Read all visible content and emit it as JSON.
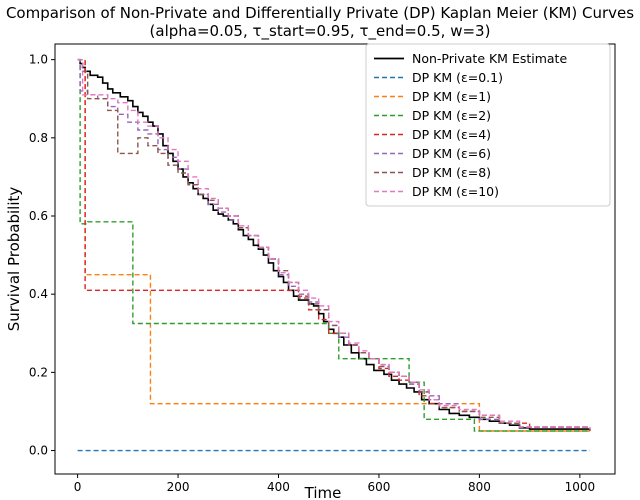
{
  "chart_data": {
    "type": "line",
    "title": "Comparison of Non-Private and Differentially Private (DP) Kaplan Meier (KM) Curves",
    "subtitle": "(alpha=0.05, τ_start=0.95, τ_end=0.5, w=3)",
    "xlabel": "Time",
    "ylabel": "Survival Probability",
    "xlim": [
      -45,
      1070
    ],
    "ylim": [
      -0.06,
      1.04
    ],
    "xticks": [
      0,
      200,
      400,
      600,
      800,
      1000
    ],
    "yticks": [
      0.0,
      0.2,
      0.4,
      0.6,
      0.8,
      1.0
    ],
    "xtick_labels": [
      "0",
      "200",
      "400",
      "600",
      "800",
      "1000"
    ],
    "ytick_labels": [
      "0.0",
      "0.2",
      "0.4",
      "0.6",
      "0.8",
      "1.0"
    ],
    "grid": false,
    "legend_position": "top-right",
    "step": true,
    "series": [
      {
        "name": "Non-Private KM Estimate",
        "color": "#000000",
        "dash": "solid",
        "points": [
          [
            0,
            1.0
          ],
          [
            5,
            0.99
          ],
          [
            10,
            0.98
          ],
          [
            15,
            0.97
          ],
          [
            25,
            0.96
          ],
          [
            40,
            0.955
          ],
          [
            50,
            0.94
          ],
          [
            60,
            0.925
          ],
          [
            70,
            0.915
          ],
          [
            85,
            0.905
          ],
          [
            100,
            0.895
          ],
          [
            110,
            0.88
          ],
          [
            120,
            0.865
          ],
          [
            130,
            0.855
          ],
          [
            140,
            0.84
          ],
          [
            150,
            0.83
          ],
          [
            160,
            0.81
          ],
          [
            170,
            0.78
          ],
          [
            180,
            0.76
          ],
          [
            190,
            0.74
          ],
          [
            200,
            0.72
          ],
          [
            210,
            0.7
          ],
          [
            220,
            0.685
          ],
          [
            230,
            0.67
          ],
          [
            240,
            0.655
          ],
          [
            250,
            0.645
          ],
          [
            260,
            0.63
          ],
          [
            270,
            0.615
          ],
          [
            280,
            0.605
          ],
          [
            290,
            0.6
          ],
          [
            300,
            0.59
          ],
          [
            310,
            0.58
          ],
          [
            320,
            0.565
          ],
          [
            330,
            0.55
          ],
          [
            340,
            0.54
          ],
          [
            350,
            0.525
          ],
          [
            360,
            0.515
          ],
          [
            370,
            0.5
          ],
          [
            380,
            0.48
          ],
          [
            390,
            0.46
          ],
          [
            400,
            0.445
          ],
          [
            410,
            0.43
          ],
          [
            420,
            0.41
          ],
          [
            430,
            0.395
          ],
          [
            440,
            0.385
          ],
          [
            460,
            0.375
          ],
          [
            470,
            0.37
          ],
          [
            480,
            0.35
          ],
          [
            490,
            0.33
          ],
          [
            500,
            0.31
          ],
          [
            510,
            0.3
          ],
          [
            520,
            0.29
          ],
          [
            530,
            0.27
          ],
          [
            545,
            0.25
          ],
          [
            560,
            0.235
          ],
          [
            575,
            0.22
          ],
          [
            590,
            0.205
          ],
          [
            610,
            0.195
          ],
          [
            625,
            0.18
          ],
          [
            640,
            0.17
          ],
          [
            655,
            0.16
          ],
          [
            670,
            0.15
          ],
          [
            685,
            0.13
          ],
          [
            700,
            0.12
          ],
          [
            720,
            0.105
          ],
          [
            740,
            0.095
          ],
          [
            760,
            0.09
          ],
          [
            780,
            0.085
          ],
          [
            800,
            0.08
          ],
          [
            820,
            0.075
          ],
          [
            840,
            0.07
          ],
          [
            860,
            0.065
          ],
          [
            880,
            0.058
          ],
          [
            900,
            0.055
          ],
          [
            1020,
            0.055
          ]
        ]
      },
      {
        "name": "DP KM (ε=0.1)",
        "color": "#1f77b4",
        "dash": "dashed",
        "points": [
          [
            0,
            0.0
          ],
          [
            1020,
            0.0
          ]
        ]
      },
      {
        "name": "DP KM (ε=1)",
        "color": "#ff7f0e",
        "dash": "dashed",
        "points": [
          [
            0,
            1.0
          ],
          [
            15,
            0.45
          ],
          [
            145,
            0.12
          ],
          [
            800,
            0.05
          ],
          [
            1020,
            0.05
          ]
        ]
      },
      {
        "name": "DP KM (ε=2)",
        "color": "#2ca02c",
        "dash": "dashed",
        "points": [
          [
            0,
            1.0
          ],
          [
            5,
            0.58
          ],
          [
            20,
            0.585
          ],
          [
            110,
            0.325
          ],
          [
            500,
            0.3
          ],
          [
            510,
            0.3
          ],
          [
            520,
            0.235
          ],
          [
            660,
            0.175
          ],
          [
            690,
            0.08
          ],
          [
            760,
            0.08
          ],
          [
            790,
            0.05
          ],
          [
            1020,
            0.05
          ]
        ]
      },
      {
        "name": "DP KM (ε=4)",
        "color": "#d62728",
        "dash": "dashed",
        "points": [
          [
            0,
            1.0
          ],
          [
            15,
            0.41
          ],
          [
            440,
            0.395
          ],
          [
            460,
            0.36
          ],
          [
            480,
            0.335
          ],
          [
            500,
            0.3
          ],
          [
            540,
            0.27
          ],
          [
            560,
            0.25
          ],
          [
            580,
            0.235
          ],
          [
            600,
            0.21
          ],
          [
            620,
            0.19
          ],
          [
            640,
            0.18
          ],
          [
            660,
            0.17
          ],
          [
            680,
            0.14
          ],
          [
            700,
            0.12
          ],
          [
            720,
            0.11
          ],
          [
            760,
            0.1
          ],
          [
            800,
            0.09
          ],
          [
            840,
            0.07
          ],
          [
            900,
            0.06
          ],
          [
            1020,
            0.05
          ]
        ]
      },
      {
        "name": "DP KM (ε=6)",
        "color": "#9467bd",
        "dash": "dashed",
        "points": [
          [
            0,
            1.0
          ],
          [
            5,
            0.92
          ],
          [
            20,
            0.91
          ],
          [
            40,
            0.9
          ],
          [
            60,
            0.88
          ],
          [
            80,
            0.86
          ],
          [
            100,
            0.84
          ],
          [
            120,
            0.82
          ],
          [
            140,
            0.81
          ],
          [
            160,
            0.77
          ],
          [
            180,
            0.75
          ],
          [
            200,
            0.72
          ],
          [
            220,
            0.68
          ],
          [
            240,
            0.655
          ],
          [
            260,
            0.63
          ],
          [
            280,
            0.61
          ],
          [
            300,
            0.59
          ],
          [
            320,
            0.57
          ],
          [
            340,
            0.55
          ],
          [
            360,
            0.52
          ],
          [
            380,
            0.49
          ],
          [
            400,
            0.45
          ],
          [
            420,
            0.42
          ],
          [
            440,
            0.4
          ],
          [
            460,
            0.38
          ],
          [
            480,
            0.36
          ],
          [
            500,
            0.32
          ],
          [
            520,
            0.29
          ],
          [
            540,
            0.27
          ],
          [
            560,
            0.25
          ],
          [
            580,
            0.235
          ],
          [
            600,
            0.22
          ],
          [
            620,
            0.2
          ],
          [
            640,
            0.19
          ],
          [
            660,
            0.17
          ],
          [
            680,
            0.15
          ],
          [
            700,
            0.14
          ],
          [
            720,
            0.12
          ],
          [
            760,
            0.1
          ],
          [
            800,
            0.08
          ],
          [
            840,
            0.07
          ],
          [
            880,
            0.06
          ],
          [
            1020,
            0.05
          ]
        ]
      },
      {
        "name": "DP KM (ε=8)",
        "color": "#8c564b",
        "dash": "dashed",
        "points": [
          [
            0,
            1.0
          ],
          [
            10,
            0.97
          ],
          [
            20,
            0.9
          ],
          [
            60,
            0.87
          ],
          [
            80,
            0.76
          ],
          [
            120,
            0.8
          ],
          [
            140,
            0.78
          ],
          [
            160,
            0.76
          ],
          [
            180,
            0.73
          ],
          [
            200,
            0.71
          ],
          [
            220,
            0.68
          ],
          [
            240,
            0.655
          ],
          [
            260,
            0.64
          ],
          [
            280,
            0.62
          ],
          [
            300,
            0.6
          ],
          [
            320,
            0.57
          ],
          [
            340,
            0.55
          ],
          [
            360,
            0.52
          ],
          [
            380,
            0.49
          ],
          [
            400,
            0.46
          ],
          [
            420,
            0.43
          ],
          [
            440,
            0.39
          ],
          [
            460,
            0.375
          ],
          [
            480,
            0.36
          ],
          [
            500,
            0.32
          ],
          [
            520,
            0.3
          ],
          [
            540,
            0.27
          ],
          [
            560,
            0.25
          ],
          [
            580,
            0.235
          ],
          [
            600,
            0.215
          ],
          [
            620,
            0.2
          ],
          [
            640,
            0.19
          ],
          [
            660,
            0.175
          ],
          [
            680,
            0.15
          ],
          [
            700,
            0.13
          ],
          [
            720,
            0.11
          ],
          [
            760,
            0.1
          ],
          [
            800,
            0.085
          ],
          [
            840,
            0.07
          ],
          [
            880,
            0.06
          ],
          [
            1020,
            0.05
          ]
        ]
      },
      {
        "name": "DP KM (ε=10)",
        "color": "#e377c2",
        "dash": "dashed",
        "points": [
          [
            0,
            1.0
          ],
          [
            10,
            0.91
          ],
          [
            40,
            0.91
          ],
          [
            60,
            0.9
          ],
          [
            80,
            0.89
          ],
          [
            100,
            0.87
          ],
          [
            120,
            0.84
          ],
          [
            140,
            0.83
          ],
          [
            160,
            0.8
          ],
          [
            180,
            0.77
          ],
          [
            200,
            0.74
          ],
          [
            220,
            0.7
          ],
          [
            240,
            0.67
          ],
          [
            260,
            0.645
          ],
          [
            280,
            0.62
          ],
          [
            300,
            0.6
          ],
          [
            320,
            0.575
          ],
          [
            340,
            0.55
          ],
          [
            360,
            0.52
          ],
          [
            380,
            0.49
          ],
          [
            400,
            0.455
          ],
          [
            420,
            0.43
          ],
          [
            440,
            0.41
          ],
          [
            460,
            0.39
          ],
          [
            480,
            0.37
          ],
          [
            500,
            0.33
          ],
          [
            520,
            0.3
          ],
          [
            540,
            0.275
          ],
          [
            560,
            0.255
          ],
          [
            580,
            0.235
          ],
          [
            600,
            0.22
          ],
          [
            620,
            0.2
          ],
          [
            640,
            0.19
          ],
          [
            660,
            0.175
          ],
          [
            680,
            0.155
          ],
          [
            700,
            0.13
          ],
          [
            720,
            0.115
          ],
          [
            760,
            0.105
          ],
          [
            800,
            0.09
          ],
          [
            840,
            0.075
          ],
          [
            880,
            0.06
          ],
          [
            1020,
            0.055
          ]
        ]
      }
    ]
  }
}
